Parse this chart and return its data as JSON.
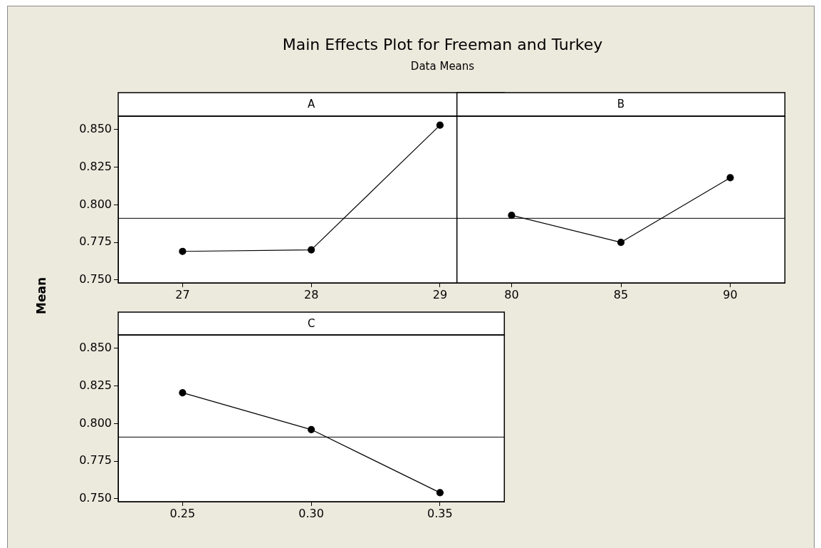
{
  "chart_data": [
    {
      "type": "other",
      "title": "Main Effects Plot for Freeman and Turkey",
      "subtitle": "Data Means",
      "ylabel": "Mean"
    },
    {
      "type": "line",
      "title": "A",
      "categories": [
        "27",
        "28",
        "29"
      ],
      "series": [
        {
          "color": "#000000",
          "values": [
            0.769,
            0.77,
            0.853
          ]
        }
      ],
      "ylim": [
        0.748,
        0.859
      ],
      "yticks": [
        {
          "value": 0.75,
          "label": "0.750"
        },
        {
          "value": 0.775,
          "label": "0.775"
        },
        {
          "value": 0.8,
          "label": "0.800"
        },
        {
          "value": 0.825,
          "label": "0.825"
        },
        {
          "value": 0.85,
          "label": "0.850"
        }
      ],
      "ref_lines": [
        {
          "axis": "y",
          "value": 0.791,
          "color": "#000000"
        }
      ],
      "marker": "circle",
      "line_style": "solid",
      "grid": false,
      "legend": false
    },
    {
      "type": "line",
      "title": "B",
      "categories": [
        "80",
        "85",
        "90"
      ],
      "series": [
        {
          "color": "#000000",
          "values": [
            0.793,
            0.775,
            0.818
          ]
        }
      ],
      "ylim": [
        0.748,
        0.859
      ],
      "tick_labels": "x",
      "ref_lines": [
        {
          "axis": "y",
          "value": 0.791,
          "color": "#000000"
        }
      ],
      "marker": "circle",
      "line_style": "solid",
      "grid": false,
      "legend": false
    },
    {
      "type": "line",
      "title": "C",
      "categories": [
        "0.25",
        "0.30",
        "0.35"
      ],
      "series": [
        {
          "color": "#000000",
          "values": [
            0.8205,
            0.796,
            0.754
          ]
        }
      ],
      "ylim": [
        0.748,
        0.859
      ],
      "yticks": [
        {
          "value": 0.75,
          "label": "0.750"
        },
        {
          "value": 0.775,
          "label": "0.775"
        },
        {
          "value": 0.8,
          "label": "0.800"
        },
        {
          "value": 0.825,
          "label": "0.825"
        },
        {
          "value": 0.85,
          "label": "0.850"
        }
      ],
      "ref_lines": [
        {
          "axis": "y",
          "value": 0.791,
          "color": "#000000"
        }
      ],
      "marker": "circle",
      "line_style": "solid",
      "grid": false,
      "legend": false
    }
  ]
}
